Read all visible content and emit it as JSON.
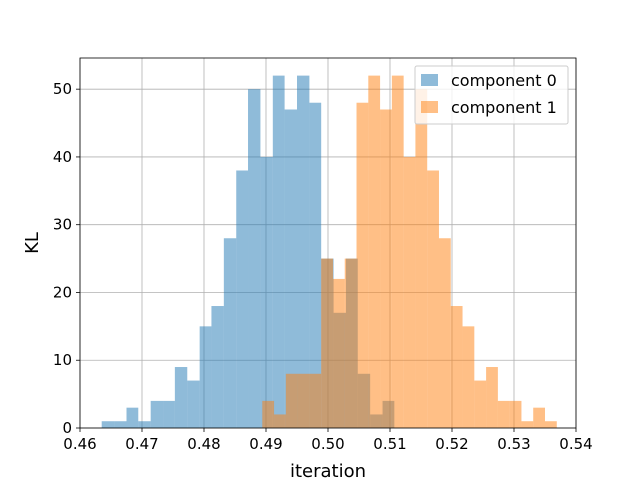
{
  "chart_data": {
    "type": "bar",
    "title": "",
    "xlabel": "iteration",
    "ylabel": "KL",
    "xlim": [
      0.46,
      0.54
    ],
    "ylim": [
      0,
      54.6
    ],
    "grid": true,
    "legend_position": "top-right",
    "x_ticks": [
      "0.46",
      "0.47",
      "0.48",
      "0.49",
      "0.50",
      "0.51",
      "0.52",
      "0.53",
      "0.54"
    ],
    "y_ticks": [
      "0",
      "10",
      "20",
      "30",
      "40",
      "50"
    ],
    "series": [
      {
        "name": "component 0",
        "color": "#1f77b4",
        "alpha": 0.5,
        "bins": [
          [
            0.4635,
            0.4655,
            1
          ],
          [
            0.4655,
            0.4675,
            1
          ],
          [
            0.4675,
            0.4694,
            3
          ],
          [
            0.4694,
            0.4714,
            1
          ],
          [
            0.4714,
            0.4734,
            4
          ],
          [
            0.4734,
            0.4753,
            4
          ],
          [
            0.4753,
            0.4773,
            9
          ],
          [
            0.4773,
            0.4793,
            7
          ],
          [
            0.4793,
            0.4812,
            15
          ],
          [
            0.4812,
            0.4832,
            18
          ],
          [
            0.4832,
            0.4852,
            28
          ],
          [
            0.4852,
            0.4871,
            38
          ],
          [
            0.4871,
            0.4891,
            50
          ],
          [
            0.4891,
            0.4911,
            40
          ],
          [
            0.4911,
            0.493,
            52
          ],
          [
            0.493,
            0.495,
            47
          ],
          [
            0.495,
            0.497,
            52
          ],
          [
            0.497,
            0.4989,
            48
          ],
          [
            0.4989,
            0.5009,
            25
          ],
          [
            0.5009,
            0.5029,
            17
          ],
          [
            0.5029,
            0.5048,
            25
          ],
          [
            0.5048,
            0.5068,
            8
          ],
          [
            0.5068,
            0.5088,
            2
          ],
          [
            0.5088,
            0.5107,
            4
          ]
        ]
      },
      {
        "name": "component 1",
        "color": "#ff7f0e",
        "alpha": 0.5,
        "bins": [
          [
            0.4894,
            0.4913,
            4
          ],
          [
            0.4913,
            0.4932,
            2
          ],
          [
            0.4932,
            0.4951,
            8
          ],
          [
            0.4951,
            0.497,
            8
          ],
          [
            0.497,
            0.4989,
            8
          ],
          [
            0.4989,
            0.5008,
            25
          ],
          [
            0.5008,
            0.5027,
            22
          ],
          [
            0.5027,
            0.5046,
            25
          ],
          [
            0.5046,
            0.5065,
            48
          ],
          [
            0.5065,
            0.5084,
            52
          ],
          [
            0.5084,
            0.5103,
            47
          ],
          [
            0.5103,
            0.5122,
            52
          ],
          [
            0.5122,
            0.5141,
            40
          ],
          [
            0.5141,
            0.516,
            50
          ],
          [
            0.516,
            0.5179,
            38
          ],
          [
            0.5179,
            0.5198,
            28
          ],
          [
            0.5198,
            0.5217,
            18
          ],
          [
            0.5217,
            0.5236,
            15
          ],
          [
            0.5236,
            0.5255,
            7
          ],
          [
            0.5255,
            0.5274,
            9
          ],
          [
            0.5274,
            0.5293,
            4
          ],
          [
            0.5293,
            0.5312,
            4
          ],
          [
            0.5312,
            0.5331,
            1
          ],
          [
            0.5331,
            0.535,
            3
          ],
          [
            0.535,
            0.5369,
            1
          ]
        ]
      }
    ]
  }
}
